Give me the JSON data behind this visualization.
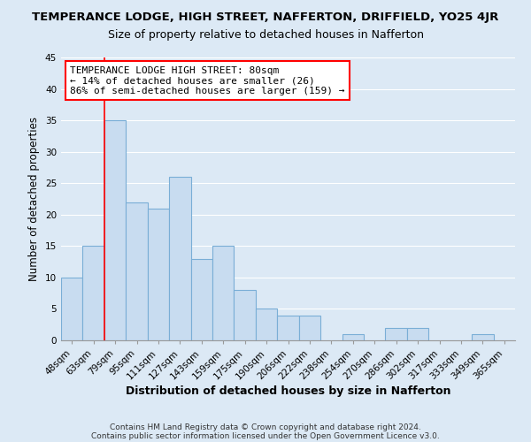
{
  "title": "TEMPERANCE LODGE, HIGH STREET, NAFFERTON, DRIFFIELD, YO25 4JR",
  "subtitle": "Size of property relative to detached houses in Nafferton",
  "xlabel": "Distribution of detached houses by size in Nafferton",
  "ylabel": "Number of detached properties",
  "bin_labels": [
    "48sqm",
    "63sqm",
    "79sqm",
    "95sqm",
    "111sqm",
    "127sqm",
    "143sqm",
    "159sqm",
    "175sqm",
    "190sqm",
    "206sqm",
    "222sqm",
    "238sqm",
    "254sqm",
    "270sqm",
    "286sqm",
    "302sqm",
    "317sqm",
    "333sqm",
    "349sqm",
    "365sqm"
  ],
  "bar_heights": [
    10,
    15,
    35,
    22,
    21,
    26,
    13,
    15,
    8,
    5,
    4,
    4,
    0,
    1,
    0,
    2,
    2,
    0,
    0,
    1,
    0
  ],
  "bar_color": "#c8dcf0",
  "bar_edge_color": "#7aaed6",
  "bar_edge_width": 0.8,
  "grid_color": "#ffffff",
  "bg_color": "#dce9f5",
  "ylim": [
    0,
    45
  ],
  "yticks": [
    0,
    5,
    10,
    15,
    20,
    25,
    30,
    35,
    40,
    45
  ],
  "red_line_bin_index": 2,
  "annotation_line1": "TEMPERANCE LODGE HIGH STREET: 80sqm",
  "annotation_line2": "← 14% of detached houses are smaller (26)",
  "annotation_line3": "86% of semi-detached houses are larger (159) →",
  "footer_line1": "Contains HM Land Registry data © Crown copyright and database right 2024.",
  "footer_line2": "Contains public sector information licensed under the Open Government Licence v3.0.",
  "title_fontsize": 9.5,
  "subtitle_fontsize": 9,
  "xlabel_fontsize": 9,
  "ylabel_fontsize": 8.5,
  "annotation_fontsize": 8,
  "footer_fontsize": 6.5,
  "tick_fontsize": 7.5
}
